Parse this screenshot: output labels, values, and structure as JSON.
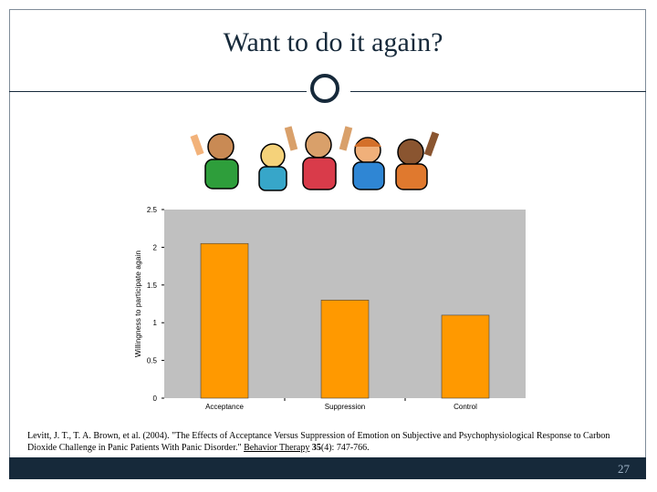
{
  "slide": {
    "title": "Want to do it again?",
    "page_number": "27"
  },
  "image": {
    "icon": "cheering-cartoon-people"
  },
  "citation": {
    "part1": "Levitt, J. T., T. A. Brown, et al. (2004). \"The Effects of Acceptance Versus Suppression of Emotion on Subjective and Psychophysiological Response to Carbon Dioxide Challenge in Panic Patients With Panic Disorder.\" ",
    "journal": "Behavior Therapy",
    "volume": "35",
    "rest": "(4): 747-766."
  },
  "colors": {
    "bar": "#FF9900",
    "plot_bg": "#C0C0C0",
    "navy": "#16293A"
  },
  "chart_data": {
    "type": "bar",
    "categories": [
      "Acceptance",
      "Suppression",
      "Control"
    ],
    "values": [
      2.05,
      1.3,
      1.1
    ],
    "ylabel": "Willingness to participate again",
    "xlabel": "",
    "ylim": [
      0,
      2.5
    ],
    "yticks": [
      "0",
      "0.5",
      "1",
      "1.5",
      "2",
      "2.5"
    ],
    "grid": false
  }
}
